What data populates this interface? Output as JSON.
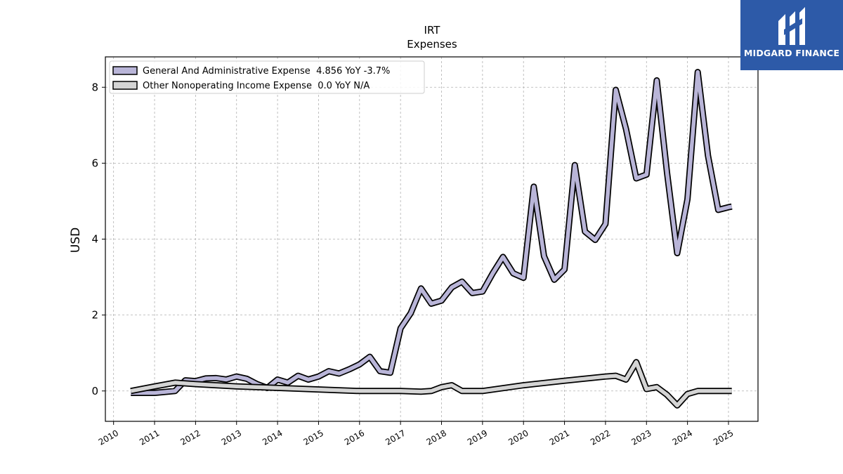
{
  "logo": {
    "text": "MIDGARD FINANCE",
    "background": "#2d5aa8"
  },
  "chart_data": {
    "type": "line",
    "title": "IRT",
    "subtitle": "Expenses",
    "xlabel": "",
    "ylabel": "USD",
    "xlim": [
      2009.8,
      2025.72
    ],
    "ylim": [
      -0.8,
      8.8
    ],
    "x_ticks": [
      "2010",
      "2011",
      "2012",
      "2013",
      "2014",
      "2015",
      "2016",
      "2017",
      "2018",
      "2019",
      "2020",
      "2021",
      "2022",
      "2023",
      "2024",
      "2025"
    ],
    "y_ticks": [
      "0",
      "2",
      "4",
      "6",
      "8"
    ],
    "grid": true,
    "legend_position": "top-left",
    "series": [
      {
        "name": "General And Administrative Expense  4.856 YoY -3.7%",
        "color": "#b9b5d8",
        "points": [
          [
            2010.42,
            -0.05
          ],
          [
            2011.0,
            -0.05
          ],
          [
            2011.5,
            0.0
          ],
          [
            2011.75,
            0.28
          ],
          [
            2012.0,
            0.26
          ],
          [
            2012.25,
            0.33
          ],
          [
            2012.5,
            0.34
          ],
          [
            2012.75,
            0.3
          ],
          [
            2013.0,
            0.38
          ],
          [
            2013.25,
            0.32
          ],
          [
            2013.5,
            0.18
          ],
          [
            2013.75,
            0.08
          ],
          [
            2014.0,
            0.3
          ],
          [
            2014.25,
            0.22
          ],
          [
            2014.5,
            0.4
          ],
          [
            2014.75,
            0.3
          ],
          [
            2015.0,
            0.38
          ],
          [
            2015.25,
            0.52
          ],
          [
            2015.5,
            0.46
          ],
          [
            2015.75,
            0.57
          ],
          [
            2016.0,
            0.7
          ],
          [
            2016.25,
            0.9
          ],
          [
            2016.5,
            0.52
          ],
          [
            2016.75,
            0.48
          ],
          [
            2017.0,
            1.65
          ],
          [
            2017.25,
            2.05
          ],
          [
            2017.5,
            2.7
          ],
          [
            2017.75,
            2.3
          ],
          [
            2018.0,
            2.38
          ],
          [
            2018.25,
            2.73
          ],
          [
            2018.5,
            2.88
          ],
          [
            2018.75,
            2.58
          ],
          [
            2019.0,
            2.62
          ],
          [
            2019.25,
            3.1
          ],
          [
            2019.5,
            3.53
          ],
          [
            2019.75,
            3.1
          ],
          [
            2020.0,
            2.98
          ],
          [
            2020.25,
            5.38
          ],
          [
            2020.5,
            3.55
          ],
          [
            2020.75,
            2.93
          ],
          [
            2021.0,
            3.2
          ],
          [
            2021.25,
            5.95
          ],
          [
            2021.5,
            4.2
          ],
          [
            2021.75,
            3.98
          ],
          [
            2022.0,
            4.4
          ],
          [
            2022.25,
            7.93
          ],
          [
            2022.5,
            6.9
          ],
          [
            2022.75,
            5.6
          ],
          [
            2023.0,
            5.7
          ],
          [
            2023.25,
            8.18
          ],
          [
            2023.5,
            5.75
          ],
          [
            2023.75,
            3.63
          ],
          [
            2024.0,
            5.05
          ],
          [
            2024.25,
            8.4
          ],
          [
            2024.5,
            6.2
          ],
          [
            2024.75,
            4.77
          ],
          [
            2025.0,
            4.84
          ],
          [
            2025.08,
            4.856
          ]
        ]
      },
      {
        "name": "Other Nonoperating Income Expense  0.0 YoY N/A",
        "color": "#d4d4d4",
        "points": [
          [
            2010.42,
            0.0
          ],
          [
            2011.0,
            0.12
          ],
          [
            2011.5,
            0.22
          ],
          [
            2012.0,
            0.18
          ],
          [
            2013.0,
            0.12
          ],
          [
            2014.0,
            0.08
          ],
          [
            2015.0,
            0.04
          ],
          [
            2016.0,
            0.0
          ],
          [
            2017.0,
            0.0
          ],
          [
            2017.5,
            -0.02
          ],
          [
            2017.75,
            0.0
          ],
          [
            2018.0,
            0.1
          ],
          [
            2018.25,
            0.15
          ],
          [
            2018.5,
            0.0
          ],
          [
            2019.0,
            0.0
          ],
          [
            2020.0,
            0.15
          ],
          [
            2021.0,
            0.27
          ],
          [
            2022.0,
            0.38
          ],
          [
            2022.25,
            0.4
          ],
          [
            2022.5,
            0.3
          ],
          [
            2022.75,
            0.76
          ],
          [
            2023.0,
            0.05
          ],
          [
            2023.25,
            0.1
          ],
          [
            2023.5,
            -0.1
          ],
          [
            2023.75,
            -0.38
          ],
          [
            2024.0,
            -0.08
          ],
          [
            2024.25,
            0.0
          ],
          [
            2025.08,
            0.0
          ]
        ]
      }
    ]
  }
}
